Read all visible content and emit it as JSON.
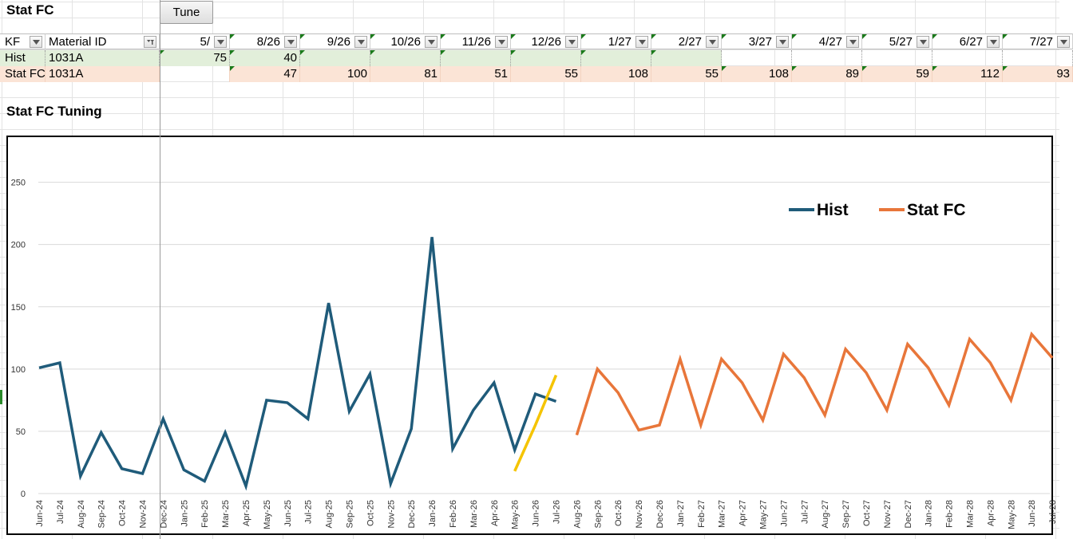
{
  "sheet": {
    "title": "Stat FC",
    "tune_button": "Tune",
    "subtitle": "Stat FC Tuning"
  },
  "grid": {
    "header": {
      "kf": "KF",
      "material": "Material ID",
      "periods": [
        "5/",
        "8/26",
        "9/26",
        "10/26",
        "11/26",
        "12/26",
        "1/27",
        "2/27",
        "3/27",
        "4/27",
        "5/27",
        "6/27",
        "7/27"
      ]
    },
    "rows": [
      {
        "kf": "Hist",
        "material": "1031A",
        "values": [
          "75",
          "40",
          "",
          "",
          "",
          "",
          "",
          "",
          "",
          "",
          "",
          "",
          ""
        ]
      },
      {
        "kf": "Stat FC",
        "material": "1031A",
        "values": [
          "",
          "47",
          "100",
          "81",
          "51",
          "55",
          "108",
          "55",
          "108",
          "89",
          "59",
          "112",
          "93"
        ]
      }
    ]
  },
  "colors": {
    "hist": "#1f5b7a",
    "stat": "#e8763a",
    "tune_line": "#f5c400",
    "hist_row_bg": "#e2efda",
    "stat_row_bg": "#fbe4d6"
  },
  "chart_data": {
    "type": "line",
    "title": "",
    "xlabel": "",
    "ylabel": "",
    "ylim": [
      0,
      250
    ],
    "yticks": [
      0,
      50,
      100,
      150,
      200,
      250
    ],
    "grid": true,
    "legend": "top-right",
    "categories": [
      "Jun-24",
      "Jul-24",
      "Aug-24",
      "Sep-24",
      "Oct-24",
      "Nov-24",
      "Dec-24",
      "Jan-25",
      "Feb-25",
      "Mar-25",
      "Apr-25",
      "May-25",
      "Jun-25",
      "Jul-25",
      "Aug-25",
      "Sep-25",
      "Oct-25",
      "Nov-25",
      "Dec-25",
      "Jan-26",
      "Feb-26",
      "Mar-26",
      "Apr-26",
      "May-26",
      "Jun-26",
      "Jul-26",
      "Aug-26",
      "Sep-26",
      "Oct-26",
      "Nov-26",
      "Dec-26",
      "Jan-27",
      "Feb-27",
      "Mar-27",
      "Apr-27",
      "May-27",
      "Jun-27",
      "Jul-27",
      "Aug-27",
      "Sep-27",
      "Oct-27",
      "Nov-27",
      "Dec-27",
      "Jan-28",
      "Feb-28",
      "Mar-28",
      "Apr-28",
      "May-28",
      "Jun-28",
      "Jul-28"
    ],
    "series": [
      {
        "name": "Hist",
        "values": [
          101,
          105,
          14,
          49,
          20,
          16,
          60,
          19,
          10,
          49,
          6,
          75,
          73,
          60,
          153,
          66,
          96,
          8,
          52,
          206,
          36,
          67,
          89,
          35,
          80,
          74,
          null,
          null,
          null,
          null,
          null,
          null,
          null,
          null,
          null,
          null,
          null,
          null,
          null,
          null,
          null,
          null,
          null,
          null,
          null,
          null,
          null,
          null,
          null,
          null
        ]
      },
      {
        "name": "Stat FC",
        "values": [
          null,
          null,
          null,
          null,
          null,
          null,
          null,
          null,
          null,
          null,
          null,
          null,
          null,
          null,
          null,
          null,
          null,
          null,
          null,
          null,
          null,
          null,
          null,
          null,
          null,
          null,
          47,
          100,
          81,
          51,
          55,
          108,
          55,
          108,
          89,
          59,
          112,
          93,
          63,
          116,
          97,
          67,
          120,
          101,
          71,
          124,
          105,
          75,
          128,
          109
        ]
      },
      {
        "name": "",
        "values": [
          null,
          null,
          null,
          null,
          null,
          null,
          null,
          null,
          null,
          null,
          null,
          null,
          null,
          null,
          null,
          null,
          null,
          null,
          null,
          null,
          null,
          null,
          null,
          18,
          55,
          95,
          null,
          null,
          null,
          null,
          null,
          null,
          null,
          null,
          null,
          null,
          null,
          null,
          null,
          null,
          null,
          null,
          null,
          null,
          null,
          null,
          null,
          null,
          null,
          null
        ]
      }
    ]
  }
}
